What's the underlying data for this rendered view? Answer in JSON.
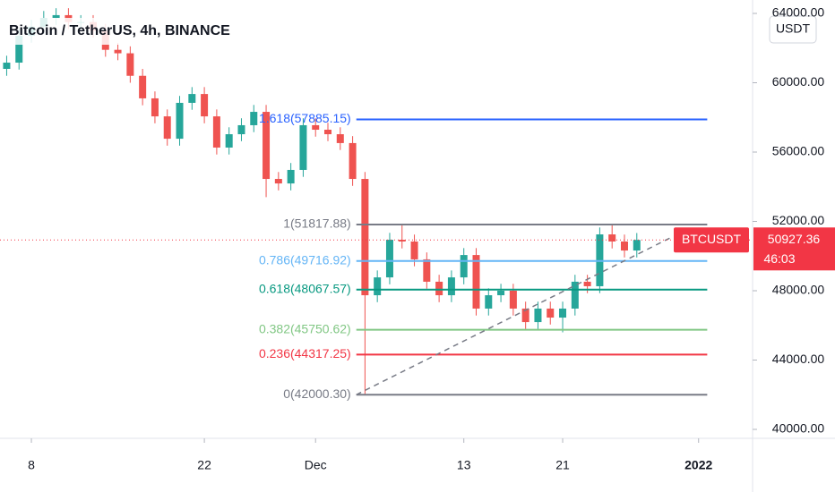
{
  "chart_data": {
    "type": "candlestick",
    "title": "Bitcoin / TetherUS, 4h, BINANCE",
    "currency_button": "USDT",
    "x": [
      6,
      7,
      8,
      9,
      10,
      11,
      12,
      13,
      14,
      15,
      16,
      17,
      18,
      19,
      20,
      21,
      22,
      23,
      24,
      25,
      26,
      27,
      28,
      29,
      30,
      31,
      32,
      33,
      34,
      35,
      36,
      37,
      38,
      39,
      40,
      41,
      42,
      43,
      44,
      45,
      46,
      47,
      48,
      49,
      50,
      51,
      52,
      53,
      54,
      55,
      56,
      57
    ],
    "open": [
      60800,
      61160,
      62710,
      63230,
      63740,
      63900,
      63500,
      63500,
      63000,
      61900,
      61700,
      60400,
      59100,
      58060,
      56770,
      58840,
      59350,
      58060,
      56260,
      57030,
      57550,
      58320,
      54450,
      54190,
      54970,
      57550,
      57290,
      57030,
      56520,
      54450,
      47740,
      48770,
      50940,
      50840,
      49810,
      48520,
      47740,
      48770,
      50060,
      46970,
      47740,
      48000,
      46970,
      46190,
      46970,
      46450,
      46970,
      48520,
      48260,
      51250,
      50840,
      50320
    ],
    "high": [
      61560,
      63110,
      63630,
      64140,
      64300,
      64300,
      63900,
      63900,
      63400,
      62300,
      62100,
      60800,
      59500,
      58460,
      59240,
      59750,
      59750,
      58460,
      57430,
      57950,
      58720,
      58720,
      54850,
      55370,
      57950,
      57950,
      57690,
      57430,
      56920,
      54850,
      49170,
      51340,
      51820,
      51240,
      50210,
      48920,
      49170,
      50460,
      50460,
      48140,
      48400,
      48400,
      47370,
      47370,
      47370,
      47370,
      48920,
      48920,
      51650,
      51800,
      51240,
      51330
    ],
    "low": [
      60400,
      60760,
      62310,
      62830,
      63340,
      63100,
      63100,
      62600,
      61500,
      61300,
      60000,
      58700,
      57660,
      56370,
      56370,
      58440,
      57660,
      55860,
      55860,
      56630,
      57150,
      53400,
      53790,
      53790,
      54570,
      56890,
      56630,
      56120,
      54050,
      42000,
      47340,
      48370,
      50440,
      49410,
      48120,
      47340,
      47340,
      48370,
      46570,
      46570,
      47340,
      46570,
      45790,
      45790,
      46050,
      45600,
      46570,
      47860,
      47860,
      50440,
      49920,
      49920
    ],
    "close": [
      61160,
      62710,
      63230,
      63740,
      63900,
      63500,
      63500,
      63000,
      61900,
      61700,
      60400,
      59100,
      58060,
      56770,
      58840,
      59350,
      58060,
      56260,
      57030,
      57550,
      58320,
      54450,
      54190,
      54970,
      57550,
      57290,
      57030,
      56520,
      54450,
      47740,
      48770,
      50940,
      50840,
      49810,
      48520,
      47740,
      48770,
      50060,
      46970,
      47740,
      48000,
      46970,
      46190,
      46970,
      46450,
      46970,
      48520,
      48260,
      51250,
      50840,
      50320,
      50930
    ],
    "up_color": "#26a69a",
    "down_color": "#ef5350",
    "xlim": [
      5.46,
      66.37
    ],
    "xticks": [
      {
        "value": 8,
        "label": "8"
      },
      {
        "value": 22,
        "label": "22"
      },
      {
        "value": 31,
        "label": "Dec"
      },
      {
        "value": 43,
        "label": "13"
      },
      {
        "value": 51,
        "label": "21"
      },
      {
        "value": 62,
        "label": "2022"
      }
    ],
    "ylim": [
      39484,
      64774
    ],
    "yticks": [
      {
        "value": 40000,
        "label": "40000.00"
      },
      {
        "value": 44000,
        "label": "44000.00"
      },
      {
        "value": 48000,
        "label": "48000.00"
      },
      {
        "value": 52000,
        "label": "52000.00"
      },
      {
        "value": 56000,
        "label": "56000.00"
      },
      {
        "value": 60000,
        "label": "60000.00"
      },
      {
        "value": 64000,
        "label": "64000.00"
      }
    ],
    "fib_x": [
      34.3,
      62.7
    ],
    "fib_levels": [
      {
        "value": 57885.15,
        "label": "1.618(57885.15)",
        "color": "#2962ff"
      },
      {
        "value": 51817.88,
        "label": "1(51817.88)",
        "color": "#787b86"
      },
      {
        "value": 49716.92,
        "label": "0.786(49716.92)",
        "color": "#64b5f6"
      },
      {
        "value": 48067.57,
        "label": "0.618(48067.57)",
        "color": "#089981"
      },
      {
        "value": 45750.62,
        "label": "0.382(45750.62)",
        "color": "#81c784"
      },
      {
        "value": 44317.25,
        "label": "0.236(44317.25)",
        "color": "#f23645"
      },
      {
        "value": 42000.3,
        "label": "0(42000.30)",
        "color": "#787b86"
      }
    ],
    "trendline": {
      "x": [
        34.3,
        59.85
      ],
      "y": [
        42000.3,
        51100
      ]
    },
    "current_price": {
      "symbol": "BTCUSDT",
      "value": 50927.36,
      "label": "50927.36",
      "countdown": "46:03",
      "color": "#f23645"
    }
  }
}
